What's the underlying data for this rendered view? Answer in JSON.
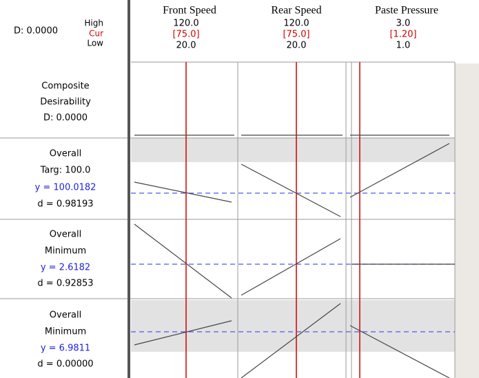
{
  "header": {
    "d": "D: 0.0000",
    "levels": [
      "High",
      "Cur",
      "Low"
    ]
  },
  "factors": [
    {
      "name": "Front Speed",
      "high": "120.0",
      "cur": "[75.0]",
      "low": "20.0"
    },
    {
      "name": "Rear Speed",
      "high": "120.0",
      "cur": "[75.0]",
      "low": "20.0"
    },
    {
      "name": "Paste Pressure",
      "high": "3.0",
      "cur": "[1.20]",
      "low": "1.0"
    }
  ],
  "composite": [
    "Composite",
    "Desirability",
    "D: 0.0000"
  ],
  "responses": [
    {
      "name": "Overall",
      "goal": "Targ: 100.0",
      "y": "y = 100.0182",
      "d": "d = 0.98193"
    },
    {
      "name": "Overall",
      "goal": "Minimum",
      "y": "y = 2.6182",
      "d": "d = 0.92853"
    },
    {
      "name": "Overall",
      "goal": "Minimum",
      "y": "y = 6.9811",
      "d": "d = 0.00000"
    }
  ]
}
